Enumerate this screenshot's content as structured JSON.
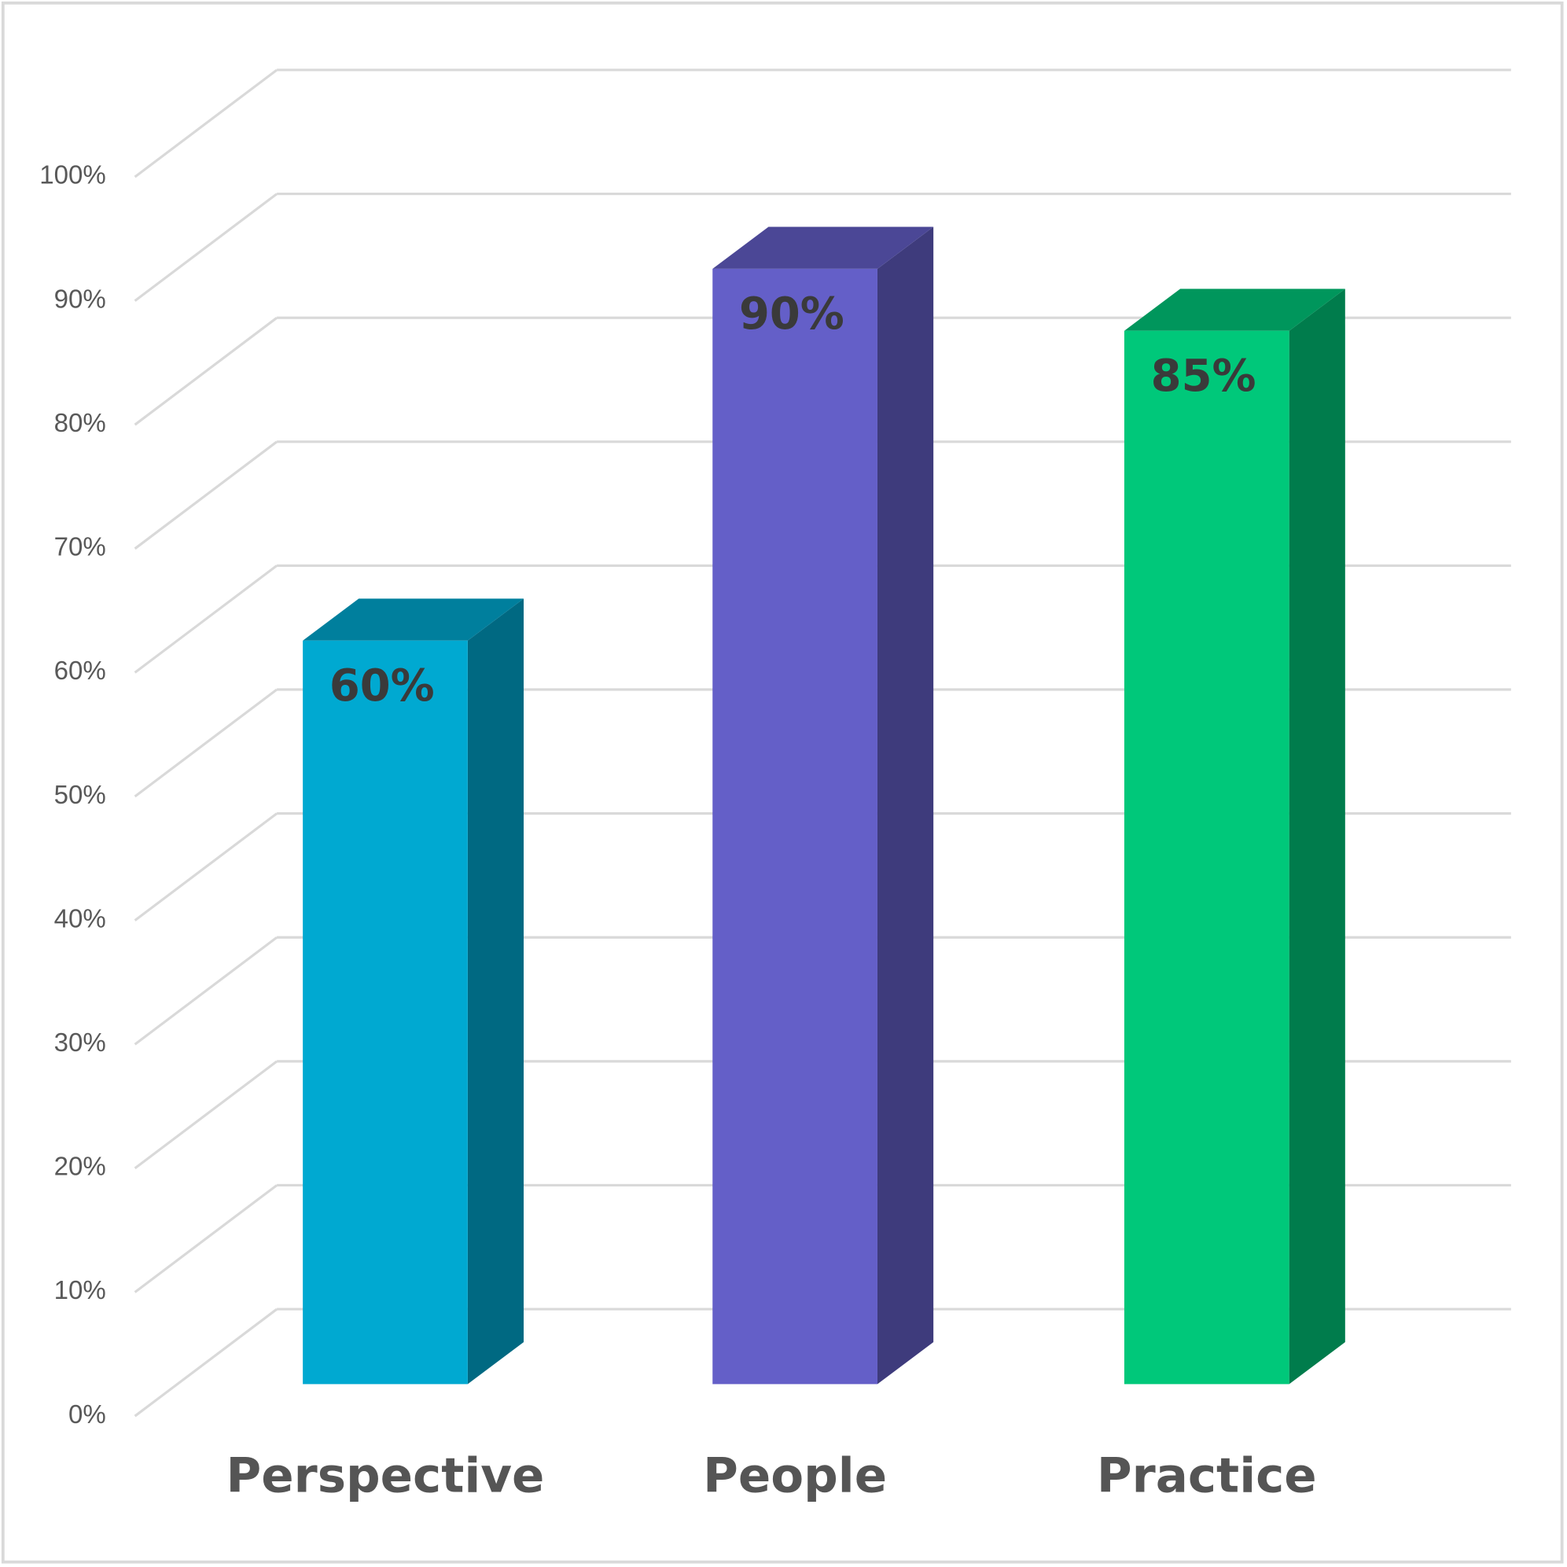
{
  "chart_data": {
    "type": "bar3d",
    "categories": [
      "Perspective",
      "People",
      "Practice"
    ],
    "values": [
      60,
      90,
      85
    ],
    "value_labels": [
      "60%",
      "90%",
      "85%"
    ],
    "colors": [
      "#00a9d1",
      "#645fc8",
      "#00c87a"
    ],
    "ylim": [
      0,
      100
    ],
    "yticks": [
      {
        "value": 0,
        "label": "0%"
      },
      {
        "value": 10,
        "label": "10%"
      },
      {
        "value": 20,
        "label": "20%"
      },
      {
        "value": 30,
        "label": "30%"
      },
      {
        "value": 40,
        "label": "40%"
      },
      {
        "value": 50,
        "label": "50%"
      },
      {
        "value": 60,
        "label": "60%"
      },
      {
        "value": 70,
        "label": "70%"
      },
      {
        "value": 80,
        "label": "80%"
      },
      {
        "value": 90,
        "label": "90%"
      },
      {
        "value": 100,
        "label": "100%"
      }
    ],
    "grid": true
  }
}
